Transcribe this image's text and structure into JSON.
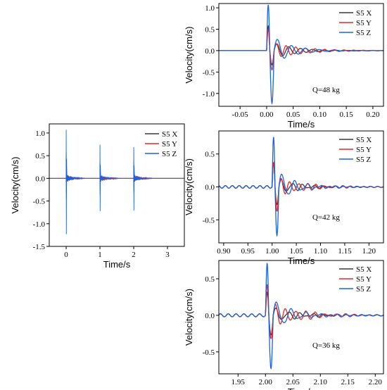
{
  "colors": {
    "x": "#3a3a3a",
    "y": "#e8262a",
    "z": "#1a62e0",
    "axis": "#000000"
  },
  "chart_data": [
    {
      "type": "line",
      "id": "overview",
      "xlabel": "Time/s",
      "ylabel": "Velocity(cm/s)",
      "xlim": [
        -0.5,
        3.5
      ],
      "ylim": [
        -1.5,
        1.2
      ],
      "xticks": [
        0,
        1,
        2,
        3
      ],
      "yticks": [
        -1.5,
        -1.0,
        -0.5,
        0.0,
        0.5,
        1.0
      ],
      "ytick_labels": [
        "-1.5",
        "-1.0",
        "-0.5",
        "0.0",
        "0.5",
        "1.0"
      ],
      "annotation": "",
      "legend": [
        "S5 X",
        "S5 Y",
        "S5 Z"
      ],
      "series": [
        {
          "name": "S5 X",
          "color": "#3a3a3a",
          "events": [
            0.0,
            1.0,
            2.0
          ],
          "amp": [
            0.57,
            0.35,
            0.3
          ],
          "neg": [
            -0.33,
            -0.25,
            -0.25
          ]
        },
        {
          "name": "S5 Y",
          "color": "#e8262a",
          "events": [
            0.0,
            1.0,
            2.0
          ],
          "amp": [
            0.5,
            0.35,
            0.4
          ],
          "neg": [
            -0.45,
            -0.35,
            -0.3
          ]
        },
        {
          "name": "S5 Z",
          "color": "#1a62e0",
          "events": [
            0.0,
            1.0,
            2.0
          ],
          "amp": [
            1.07,
            0.74,
            0.69
          ],
          "neg": [
            -1.23,
            -0.72,
            -0.71
          ]
        }
      ]
    },
    {
      "type": "line",
      "id": "q48",
      "xlabel": "Time/s",
      "ylabel": "Velocity(cm/s)",
      "xlim": [
        -0.09,
        0.22
      ],
      "ylim": [
        -1.3,
        1.1
      ],
      "xticks": [
        -0.05,
        0.0,
        0.05,
        0.1,
        0.15,
        0.2
      ],
      "xtick_labels": [
        "-0.05",
        "0.00",
        "0.05",
        "0.10",
        "0.15",
        "0.20"
      ],
      "yticks": [
        -1.0,
        -0.5,
        0.0,
        0.5,
        1.0
      ],
      "ytick_labels": [
        "-1.0",
        "-0.5",
        "0.0",
        "0.5",
        "1.0"
      ],
      "annotation": "Q=48 kg",
      "legend": [
        "S5 X",
        "S5 Y",
        "S5 Z"
      ],
      "series": [
        {
          "name": "S5 X",
          "color": "#3a3a3a",
          "t0": 0.0,
          "peak": 0.57,
          "trough": -0.33,
          "freq": 45,
          "decay": 25
        },
        {
          "name": "S5 Y",
          "color": "#e8262a",
          "t0": 0.0,
          "peak": 0.5,
          "trough": -0.45,
          "freq": 55,
          "decay": 18
        },
        {
          "name": "S5 Z",
          "color": "#1a62e0",
          "t0": 0.0,
          "peak": 1.07,
          "trough": -1.23,
          "freq": 38,
          "decay": 30
        }
      ]
    },
    {
      "type": "line",
      "id": "q42",
      "xlabel": "Time/s",
      "ylabel": "Velocity(cm/s)",
      "xlim": [
        0.89,
        1.23
      ],
      "ylim": [
        -0.85,
        0.85
      ],
      "xticks": [
        0.9,
        0.95,
        1.0,
        1.05,
        1.1,
        1.15,
        1.2
      ],
      "xtick_labels": [
        "0.90",
        "0.95",
        "1.00",
        "1.05",
        "1.10",
        "1.15",
        "1.20"
      ],
      "yticks": [
        -0.5,
        0.0,
        0.5
      ],
      "ytick_labels": [
        "-0.5",
        "0.0",
        "0.5"
      ],
      "annotation": "Q=42 kg",
      "legend": [
        "S5 X",
        "S5 Y",
        "S5 Z"
      ],
      "series": [
        {
          "name": "S5 X",
          "color": "#3a3a3a",
          "t0": 1.0,
          "peak": 0.35,
          "trough": -0.25,
          "freq": 45,
          "decay": 25
        },
        {
          "name": "S5 Y",
          "color": "#e8262a",
          "t0": 1.0,
          "peak": 0.35,
          "trough": -0.35,
          "freq": 55,
          "decay": 18
        },
        {
          "name": "S5 Z",
          "color": "#1a62e0",
          "t0": 1.0,
          "peak": 0.74,
          "trough": -0.72,
          "freq": 38,
          "decay": 30
        }
      ]
    },
    {
      "type": "line",
      "id": "q36",
      "xlabel": "Time/s",
      "ylabel": "Velocity(cm/s)",
      "xlim": [
        1.915,
        2.215
      ],
      "ylim": [
        -0.8,
        0.75
      ],
      "xticks": [
        1.95,
        2.0,
        2.05,
        2.1,
        2.15,
        2.2
      ],
      "xtick_labels": [
        "1.95",
        "2.00",
        "2.05",
        "2.10",
        "2.15",
        "2.20"
      ],
      "yticks": [
        -0.5,
        0.0,
        0.5
      ],
      "ytick_labels": [
        "-0.5",
        "0.0",
        "0.5"
      ],
      "annotation": "Q=36 kg",
      "legend": [
        "S5 X",
        "S5 Y",
        "S5 Z"
      ],
      "series": [
        {
          "name": "S5 X",
          "color": "#3a3a3a",
          "t0": 2.0,
          "peak": 0.3,
          "trough": -0.25,
          "freq": 45,
          "decay": 25
        },
        {
          "name": "S5 Y",
          "color": "#e8262a",
          "t0": 2.0,
          "peak": 0.4,
          "trough": -0.3,
          "freq": 55,
          "decay": 18
        },
        {
          "name": "S5 Z",
          "color": "#1a62e0",
          "t0": 2.0,
          "peak": 0.69,
          "trough": -0.71,
          "freq": 38,
          "decay": 30
        }
      ]
    }
  ]
}
